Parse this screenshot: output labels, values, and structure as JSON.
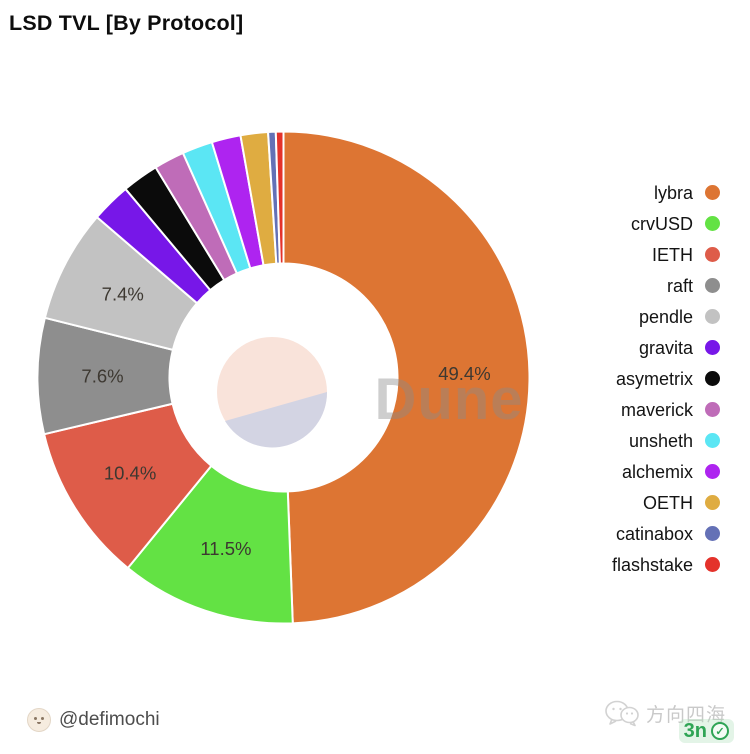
{
  "title": "LSD TVL [By Protocol]",
  "watermark": {
    "text": "Dune"
  },
  "footer": {
    "handle": "@defimochi",
    "stamp_text": "方向四海",
    "badge_text": "3n",
    "badge_check": "✓"
  },
  "colors": {
    "label_text": "#3d3831",
    "watermark_text": "#8a8a8a",
    "badge_green": "#2fa455",
    "logo_top": "#f9e3da",
    "logo_bottom": "#d3d4e3"
  },
  "chart_data": {
    "type": "pie",
    "title": "LSD TVL [By Protocol]",
    "donut": true,
    "legend_position": "right",
    "labels_min_pct": 7,
    "unit": "%",
    "series": [
      {
        "name": "lybra",
        "value": 49.4,
        "color": "#dd7533"
      },
      {
        "name": "crvUSD",
        "value": 11.5,
        "color": "#63e244"
      },
      {
        "name": "IETH",
        "value": 10.4,
        "color": "#de5c49"
      },
      {
        "name": "raft",
        "value": 7.6,
        "color": "#8e8e8e"
      },
      {
        "name": "pendle",
        "value": 7.4,
        "color": "#c2c2c2"
      },
      {
        "name": "gravita",
        "value": 2.6,
        "color": "#7717e8"
      },
      {
        "name": "asymetrix",
        "value": 2.4,
        "color": "#0b0b0b"
      },
      {
        "name": "maverick",
        "value": 2.0,
        "color": "#bf6cb8"
      },
      {
        "name": "unsheth",
        "value": 2.0,
        "color": "#5be6f4"
      },
      {
        "name": "alchemix",
        "value": 1.9,
        "color": "#ae24f0"
      },
      {
        "name": "OETH",
        "value": 1.8,
        "color": "#dfac41"
      },
      {
        "name": "catinabox",
        "value": 0.5,
        "color": "#6471b6"
      },
      {
        "name": "flashstake",
        "value": 0.5,
        "color": "#e4322b"
      }
    ]
  }
}
